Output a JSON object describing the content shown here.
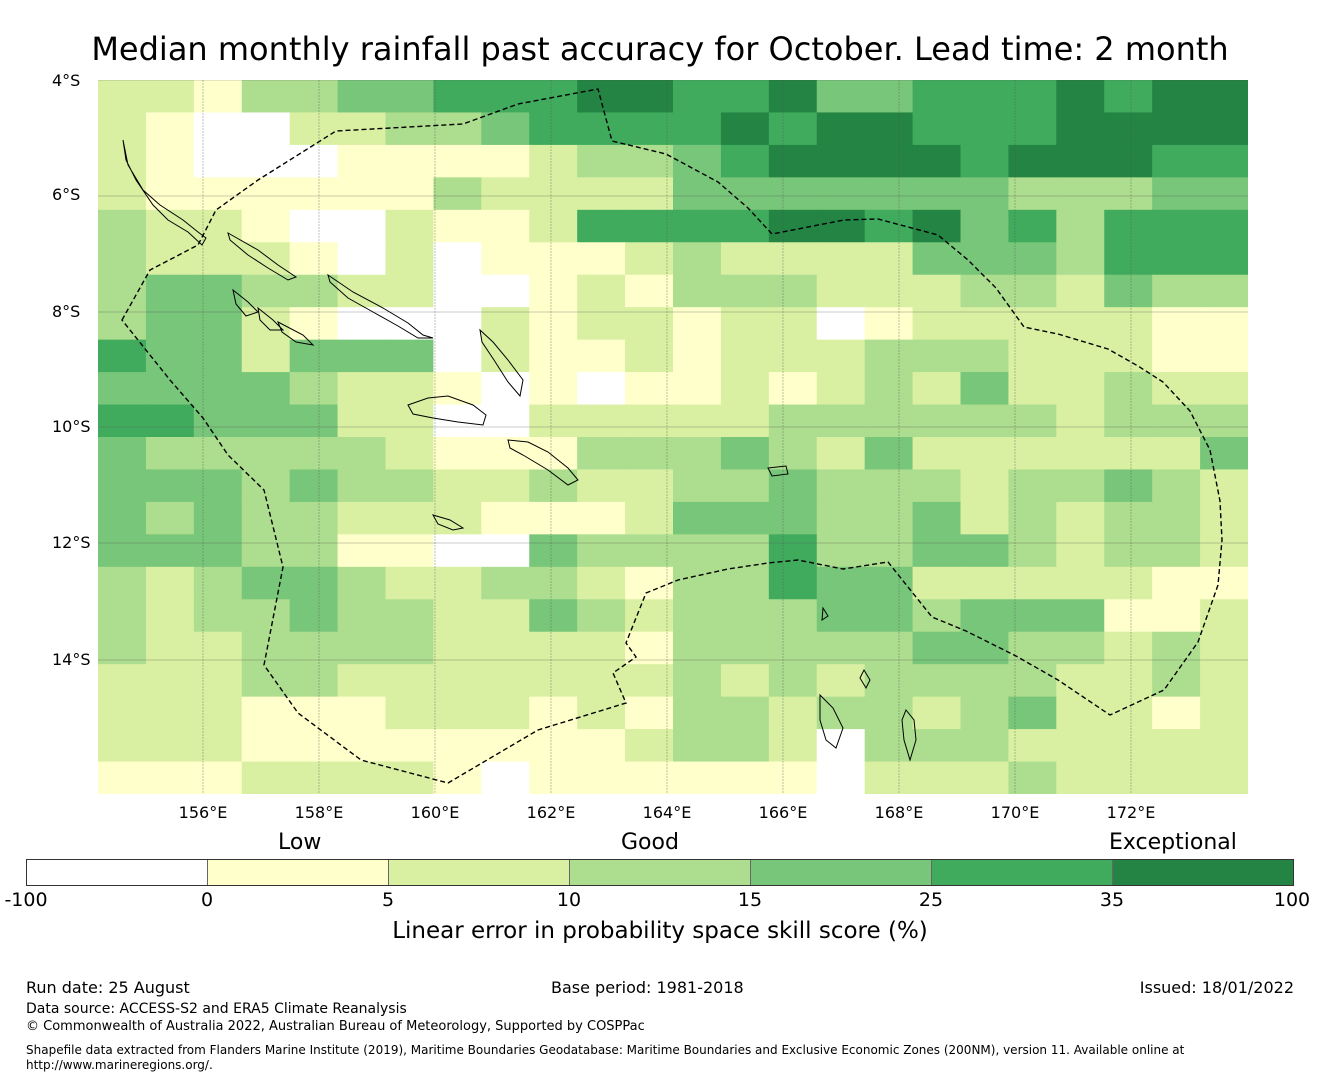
{
  "title": "Median monthly rainfall past accuracy for October. Lead time: 2 month",
  "lat_labels": [
    "4°S",
    "6°S",
    "8°S",
    "10°S",
    "12°S",
    "14°S"
  ],
  "lon_labels": [
    "156°E",
    "158°E",
    "160°E",
    "162°E",
    "164°E",
    "166°E",
    "168°E",
    "170°E",
    "172°E"
  ],
  "categories": {
    "low": "Low",
    "good": "Good",
    "exceptional": "Exceptional"
  },
  "colorbar": {
    "ticks": [
      "-100",
      "0",
      "5",
      "10",
      "15",
      "25",
      "35",
      "100"
    ],
    "colors": [
      "#ffffff",
      "#ffffcc",
      "#d9f0a3",
      "#addd8e",
      "#78c679",
      "#41ab5d",
      "#238443"
    ],
    "label": "Linear error in probability space skill score (%)"
  },
  "map": {
    "grid_size": [
      24,
      22
    ],
    "skill_class_grid": [
      "221334455566556445556566",
      "210022334555565665556666",
      "210001111233456666566655",
      "211111132222444444433344",
      "322100211255556656453555",
      "322210201112322224443555",
      "344332200121333222332433",
      "344210002122122012222211",
      "544244402112122233322211",
      "444432210101121232422322",
      "554442200222223333332333",
      "433333211133343242222224",
      "444343322322334333233432",
      "434332221112444334232332",
      "444331100433335334432332",
      "323443223321335442222211",
      "323343322432333443444112",
      "322333322221333334433232",
      "222332222222323233332232",
      "222111222121332332342212",
      "222111111112332033322222",
      "111222210111111022232222"
    ]
  },
  "footer": {
    "run_date": "Run date: 25 August",
    "base_period": "Base period: 1981-2018",
    "issued": "Issued: 18/01/2022",
    "data_source": "Data source: ACCESS-S2 and ERA5 Climate Reanalysis",
    "copyright": "© Commonwealth of Australia 2022, Australian Bureau of Meteorology, Supported by COSPPac",
    "shapefile": "Shapefile data extracted from Flanders Marine Institute (2019), Maritime Boundaries Geodatabase: Maritime Boundaries and Exclusive Economic Zones (200NM), version 11. Available online at http://www.marineregions.org/."
  }
}
